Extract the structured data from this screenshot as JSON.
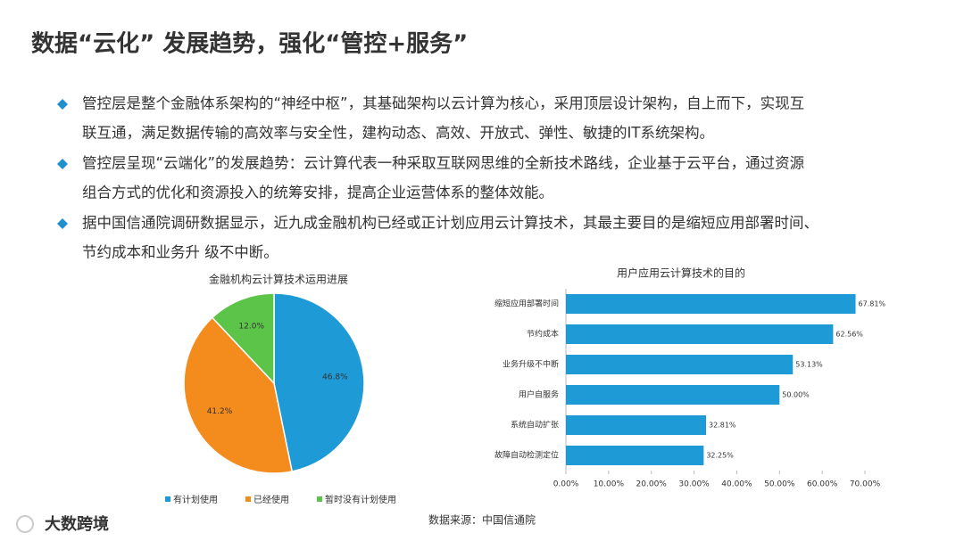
{
  "title": "数据“云化” 发展趋势，强化“管控+服务”",
  "bullets": [
    [
      "管控层是整个金融体系架构的“神经中枢”，其基础架构以云计算为核心，采用顶层设计架构，自上而下，实现互",
      "联互通，满足数据传输的高效率与安全性，建构动态、高效、开放式、弹性、敏捷的IT系统架构。"
    ],
    [
      "管控层呈现“云端化”的发展趋势：云计算代表一种采取互联网思维的全新技术路线，企业基于云平台，通过资源",
      "组合方式的优化和资源投入的统筹安排，提高企业运营体系的整体效能。"
    ],
    [
      "据中国信通院调研数据显示，近九成金融机构已经或正计划应用云计算技术，其最主要目的是缩短应用部署时间、",
      "节约成本和业务升 级不中断。"
    ]
  ],
  "source": "数据来源：中国信通院",
  "watermark": "大数跨境",
  "chart_data": [
    {
      "type": "pie",
      "title": "金融机构云计算技术运用进展",
      "categories": [
        "有计划使用",
        "已经使用",
        "暂时没有计划使用"
      ],
      "values": [
        46.8,
        41.2,
        12.0
      ],
      "value_labels": [
        "46.8%",
        "41.2%",
        "12.0%"
      ],
      "colors": [
        "#1e9ad6",
        "#f38b1d",
        "#5cc448"
      ],
      "legend": "bottom"
    },
    {
      "type": "hbar",
      "title": "用户应用云计算技术的目的",
      "categories": [
        "缩短应用部署时间",
        "节约成本",
        "业务升级不中断",
        "用户自服务",
        "系统自动扩张",
        "故障自动检测定位"
      ],
      "values": [
        67.81,
        62.56,
        53.13,
        50.0,
        32.81,
        32.25
      ],
      "value_labels": [
        "67.81%",
        "62.56%",
        "53.13%",
        "50.00%",
        "32.81%",
        "32.25%"
      ],
      "color": "#1e9ad6",
      "xlim": [
        0,
        70
      ],
      "xticks": [
        {
          "value": 0,
          "label": "0.00%"
        },
        {
          "value": 10,
          "label": "10.00%"
        },
        {
          "value": 20,
          "label": "20.00%"
        },
        {
          "value": 30,
          "label": "30.00%"
        },
        {
          "value": 40,
          "label": "40.00%"
        },
        {
          "value": 50,
          "label": "50.00%"
        },
        {
          "value": 60,
          "label": "60.00%"
        },
        {
          "value": 70,
          "label": "70.00%"
        }
      ]
    }
  ]
}
